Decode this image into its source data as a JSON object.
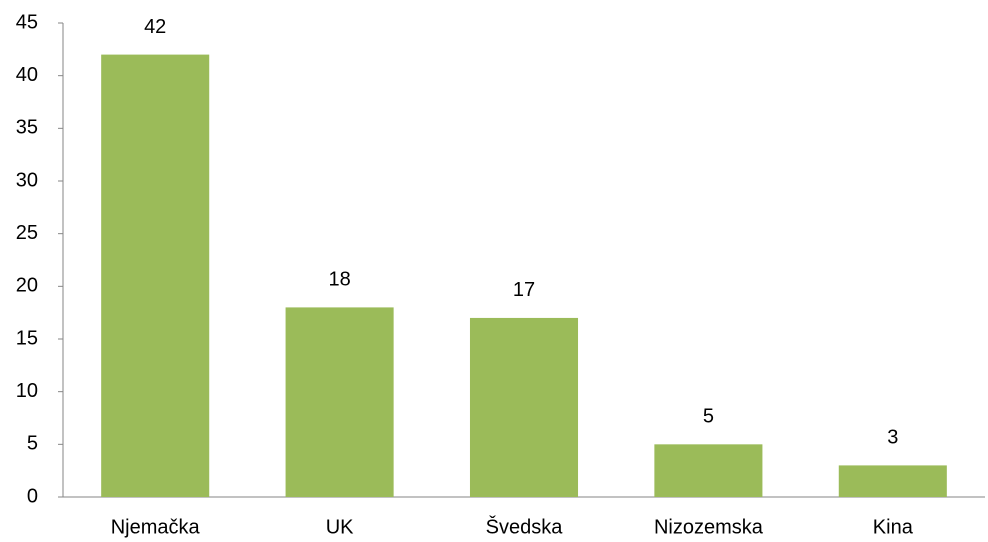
{
  "chart_data": {
    "type": "bar",
    "categories": [
      "Njemačka",
      "UK",
      "Švedska",
      "Nizozemska",
      "Kina"
    ],
    "values": [
      42,
      18,
      17,
      5,
      3
    ],
    "color": "#9bbb59",
    "ylim": [
      0,
      45
    ],
    "yticks": [
      0,
      5,
      10,
      15,
      20,
      25,
      30,
      35,
      40,
      45
    ],
    "grid": false,
    "data_labels": true
  }
}
